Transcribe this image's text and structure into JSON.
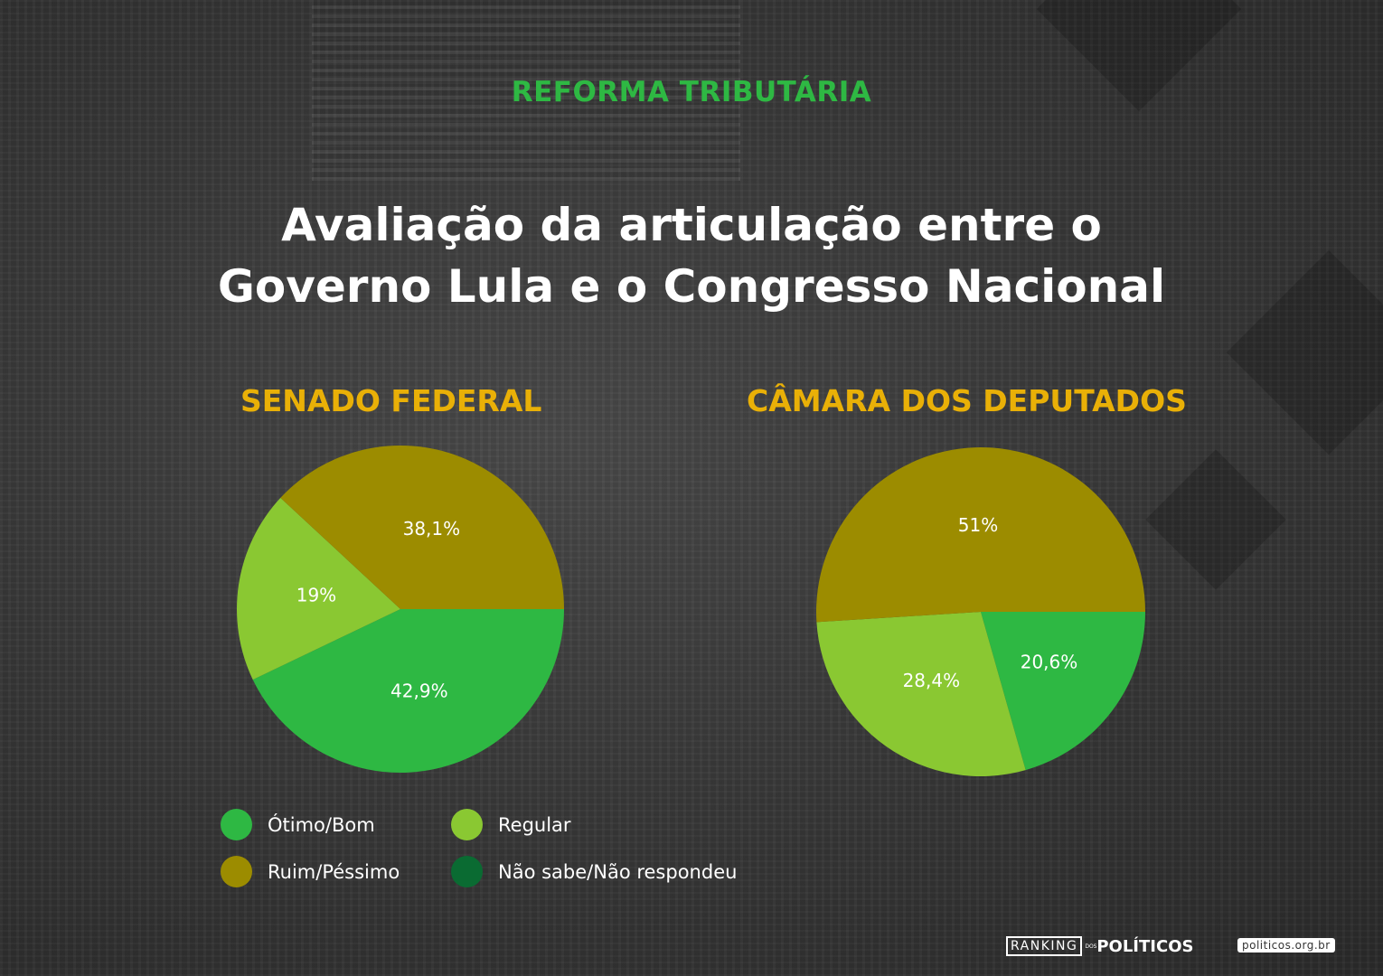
{
  "kicker": "REFORMA TRIBUTÁRIA",
  "title_line1": "Avaliação da articulação entre o",
  "title_line2": "Governo Lula e o Congresso Nacional",
  "colors": {
    "otimo_bom": "#2eb843",
    "regular": "#8ac832",
    "ruim_pessimo": "#9c8c00",
    "nao_sabe": "#0a6b32",
    "chart_title": "#e9b007",
    "kicker": "#2eb843"
  },
  "legend": [
    {
      "label": "Ótimo/Bom",
      "color": "#2eb843"
    },
    {
      "label": "Regular",
      "color": "#8ac832"
    },
    {
      "label": "Ruim/Péssimo",
      "color": "#9c8c00"
    },
    {
      "label": "Não sabe/Não respondeu",
      "color": "#0a6b32"
    }
  ],
  "chart_data": [
    {
      "type": "pie",
      "title": "SENADO FEDERAL",
      "slices": [
        {
          "name": "Ótimo/Bom",
          "value": 42.9,
          "label": "42,9%",
          "color": "#2eb843"
        },
        {
          "name": "Regular",
          "value": 19.0,
          "label": "19%",
          "color": "#8ac832"
        },
        {
          "name": "Ruim/Péssimo",
          "value": 38.1,
          "label": "38,1%",
          "color": "#9c8c00"
        }
      ]
    },
    {
      "type": "pie",
      "title": "CÂMARA DOS DEPUTADOS",
      "slices": [
        {
          "name": "Ótimo/Bom",
          "value": 20.6,
          "label": "20,6%",
          "color": "#2eb843"
        },
        {
          "name": "Regular",
          "value": 28.4,
          "label": "28,4%",
          "color": "#8ac832"
        },
        {
          "name": "Ruim/Péssimo",
          "value": 51.0,
          "label": "51%",
          "color": "#9c8c00"
        }
      ]
    }
  ],
  "footer": {
    "logo_ranking": "RANKING",
    "logo_dos": "DOS",
    "logo_politicos": "POLÍTICOS",
    "site": "politicos.org.br"
  }
}
